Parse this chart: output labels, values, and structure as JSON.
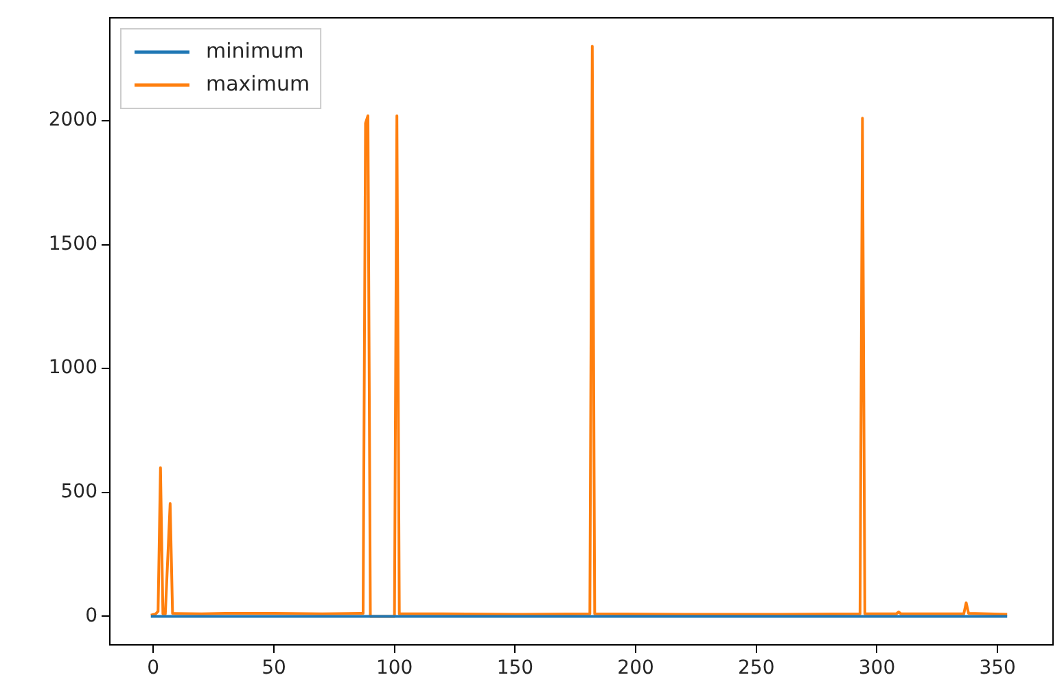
{
  "chart_data": {
    "type": "line",
    "xlim": [
      -18,
      373
    ],
    "xticks": [
      0,
      50,
      100,
      150,
      200,
      250,
      300,
      350
    ],
    "ylim": [
      -115,
      2415
    ],
    "yticks": [
      0,
      500,
      1000,
      1500,
      2000
    ],
    "grid": false,
    "legend": "top left",
    "marker": "none",
    "line_style": "solid",
    "series": [
      {
        "name": "minimum",
        "color": "#1f77b4",
        "x": [
          -1,
          354
        ],
        "values": [
          0,
          0
        ]
      },
      {
        "name": "maximum",
        "color": "#ff7f0e",
        "x": [
          -1,
          1,
          2,
          3,
          4,
          5,
          7,
          8,
          20,
          30,
          50,
          70,
          86,
          87,
          88,
          89,
          90,
          100,
          101,
          102,
          120,
          150,
          181,
          182,
          183,
          220,
          260,
          293,
          294,
          295,
          308,
          309,
          310,
          336,
          337,
          338,
          354
        ],
        "values": [
          5,
          10,
          20,
          600,
          10,
          10,
          455,
          12,
          10,
          12,
          12,
          10,
          12,
          12,
          1990,
          2020,
          0,
          0,
          2020,
          10,
          10,
          8,
          10,
          2300,
          10,
          8,
          8,
          10,
          2010,
          10,
          10,
          18,
          10,
          10,
          55,
          12,
          8
        ]
      }
    ]
  }
}
